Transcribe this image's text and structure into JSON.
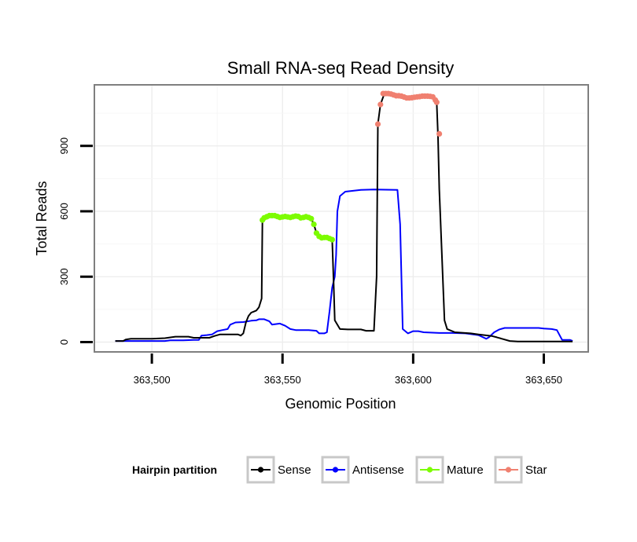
{
  "chart_data": {
    "type": "line",
    "title": "Small RNA-seq Read Density",
    "xlabel": "Genomic Position",
    "ylabel": "Total Reads",
    "xlim": [
      363478,
      363667
    ],
    "ylim": [
      -45,
      1180
    ],
    "x_ticks": [
      363500,
      363550,
      363600,
      363650
    ],
    "x_tick_labels": [
      "363,500",
      "363,550",
      "363,600",
      "363,650"
    ],
    "y_ticks": [
      0,
      300,
      600,
      900
    ],
    "y_tick_labels": [
      "0",
      "300",
      "600",
      "900"
    ],
    "grid": true,
    "legend": {
      "title": "Hairpin partition",
      "position": "bottom",
      "entries": [
        "Sense",
        "Antisense",
        "Mature",
        "Star"
      ]
    },
    "series": [
      {
        "name": "Sense",
        "color": "#000000",
        "mark": "line",
        "points": [
          [
            363486,
            5
          ],
          [
            363489,
            5
          ],
          [
            363490,
            12
          ],
          [
            363492,
            15
          ],
          [
            363500,
            15
          ],
          [
            363505,
            18
          ],
          [
            363509,
            25
          ],
          [
            363514,
            25
          ],
          [
            363516,
            20
          ],
          [
            363522,
            20
          ],
          [
            363524,
            28
          ],
          [
            363526,
            35
          ],
          [
            363533,
            35
          ],
          [
            363534,
            30
          ],
          [
            363535,
            40
          ],
          [
            363536,
            90
          ],
          [
            363537,
            120
          ],
          [
            363538,
            135
          ],
          [
            363539,
            140
          ],
          [
            363540,
            145
          ],
          [
            363541,
            160
          ],
          [
            363542,
            200
          ],
          [
            363542.3,
            560
          ],
          [
            363543,
            570
          ],
          [
            363545,
            580
          ],
          [
            363547,
            580
          ],
          [
            363549,
            572
          ],
          [
            363551,
            576
          ],
          [
            363553,
            572
          ],
          [
            363555,
            578
          ],
          [
            363557,
            570
          ],
          [
            363559,
            575
          ],
          [
            363561,
            566
          ],
          [
            363562,
            540
          ],
          [
            363563,
            500
          ],
          [
            363564,
            485
          ],
          [
            363565,
            478
          ],
          [
            363567,
            480
          ],
          [
            363569,
            470
          ],
          [
            363569.5,
            300
          ],
          [
            363570,
            100
          ],
          [
            363572,
            60
          ],
          [
            363575,
            58
          ],
          [
            363580,
            58
          ],
          [
            363582,
            52
          ],
          [
            363585,
            52
          ],
          [
            363586,
            300
          ],
          [
            363586.5,
            1000
          ],
          [
            363587.5,
            1090
          ],
          [
            363589,
            1140
          ],
          [
            363591,
            1140
          ],
          [
            363593,
            1130
          ],
          [
            363595,
            1130
          ],
          [
            363597,
            1120
          ],
          [
            363599,
            1120
          ],
          [
            363601,
            1125
          ],
          [
            363603,
            1128
          ],
          [
            363605,
            1128
          ],
          [
            363607,
            1125
          ],
          [
            363609,
            1100
          ],
          [
            363609.5,
            950
          ],
          [
            363610,
            700
          ],
          [
            363611,
            400
          ],
          [
            363612,
            100
          ],
          [
            363613,
            60
          ],
          [
            363616,
            45
          ],
          [
            363622,
            40
          ],
          [
            363625,
            35
          ],
          [
            363630,
            28
          ],
          [
            363632,
            22
          ],
          [
            363634,
            15
          ],
          [
            363637,
            5
          ],
          [
            363640,
            3
          ],
          [
            363650,
            3
          ],
          [
            363661,
            3
          ]
        ]
      },
      {
        "name": "Antisense",
        "color": "#0000ff",
        "mark": "line",
        "points": [
          [
            363486,
            5
          ],
          [
            363493,
            5
          ],
          [
            363500,
            5
          ],
          [
            363505,
            5
          ],
          [
            363507,
            8
          ],
          [
            363510,
            8
          ],
          [
            363512,
            8
          ],
          [
            363516,
            10
          ],
          [
            363518,
            10
          ],
          [
            363519,
            30
          ],
          [
            363521,
            32
          ],
          [
            363523,
            35
          ],
          [
            363525,
            50
          ],
          [
            363527,
            55
          ],
          [
            363529,
            60
          ],
          [
            363530,
            80
          ],
          [
            363532,
            90
          ],
          [
            363535,
            92
          ],
          [
            363538,
            98
          ],
          [
            363540,
            100
          ],
          [
            363541,
            105
          ],
          [
            363543,
            105
          ],
          [
            363545,
            95
          ],
          [
            363546,
            80
          ],
          [
            363549,
            85
          ],
          [
            363551,
            75
          ],
          [
            363553,
            60
          ],
          [
            363555,
            55
          ],
          [
            363560,
            55
          ],
          [
            363563,
            52
          ],
          [
            363564,
            40
          ],
          [
            363566,
            40
          ],
          [
            363567,
            45
          ],
          [
            363568,
            140
          ],
          [
            363569,
            250
          ],
          [
            363570,
            300
          ],
          [
            363570.5,
            400
          ],
          [
            363571,
            600
          ],
          [
            363572,
            670
          ],
          [
            363574,
            690
          ],
          [
            363580,
            698
          ],
          [
            363585,
            700
          ],
          [
            363594,
            698
          ],
          [
            363595,
            540
          ],
          [
            363596,
            60
          ],
          [
            363598,
            40
          ],
          [
            363600,
            50
          ],
          [
            363602,
            50
          ],
          [
            363604,
            45
          ],
          [
            363610,
            42
          ],
          [
            363615,
            42
          ],
          [
            363620,
            40
          ],
          [
            363625,
            32
          ],
          [
            363628,
            15
          ],
          [
            363629,
            22
          ],
          [
            363631,
            45
          ],
          [
            363633,
            58
          ],
          [
            363635,
            65
          ],
          [
            363645,
            65
          ],
          [
            363648,
            65
          ],
          [
            363650,
            62
          ],
          [
            363653,
            60
          ],
          [
            363655,
            55
          ],
          [
            363657,
            10
          ],
          [
            363660,
            10
          ],
          [
            363661,
            5
          ]
        ]
      },
      {
        "name": "Mature",
        "color": "#7cfc00",
        "mark": "points",
        "points": [
          [
            363542.3,
            560
          ],
          [
            363543,
            570
          ],
          [
            363544,
            575
          ],
          [
            363545,
            580
          ],
          [
            363546,
            580
          ],
          [
            363547,
            580
          ],
          [
            363548,
            576
          ],
          [
            363549,
            572
          ],
          [
            363550,
            574
          ],
          [
            363551,
            576
          ],
          [
            363552,
            574
          ],
          [
            363553,
            572
          ],
          [
            363554,
            575
          ],
          [
            363555,
            578
          ],
          [
            363556,
            576
          ],
          [
            363557,
            570
          ],
          [
            363558,
            572
          ],
          [
            363559,
            575
          ],
          [
            363560,
            572
          ],
          [
            363561,
            566
          ],
          [
            363562,
            540
          ],
          [
            363563,
            500
          ],
          [
            363564,
            485
          ],
          [
            363565,
            478
          ],
          [
            363566,
            480
          ],
          [
            363567,
            480
          ],
          [
            363568,
            475
          ],
          [
            363569,
            470
          ]
        ]
      },
      {
        "name": "Star",
        "color": "#f08070",
        "mark": "points",
        "points": [
          [
            363586.5,
            1000
          ],
          [
            363587.5,
            1090
          ],
          [
            363588.5,
            1140
          ],
          [
            363589.5,
            1140
          ],
          [
            363590.5,
            1140
          ],
          [
            363591.5,
            1138
          ],
          [
            363592.5,
            1134
          ],
          [
            363593.5,
            1130
          ],
          [
            363594.5,
            1130
          ],
          [
            363595.5,
            1128
          ],
          [
            363596.5,
            1124
          ],
          [
            363597.5,
            1120
          ],
          [
            363598.5,
            1120
          ],
          [
            363599.5,
            1121
          ],
          [
            363600.5,
            1123
          ],
          [
            363601.5,
            1125
          ],
          [
            363602.5,
            1126
          ],
          [
            363603.5,
            1128
          ],
          [
            363604.5,
            1128
          ],
          [
            363605.5,
            1128
          ],
          [
            363606.5,
            1127
          ],
          [
            363607.5,
            1125
          ],
          [
            363608.5,
            1110
          ],
          [
            363609,
            1100
          ],
          [
            363610,
            955
          ]
        ]
      }
    ]
  }
}
